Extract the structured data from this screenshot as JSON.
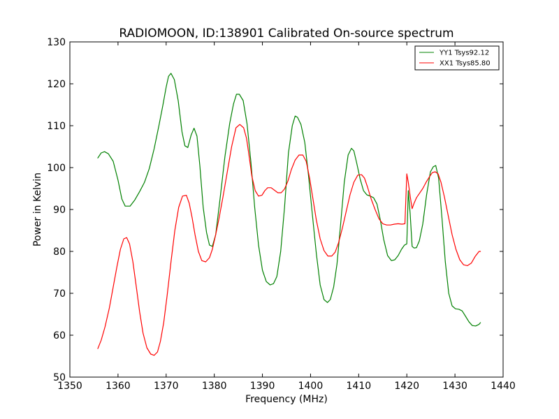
{
  "chart_data": {
    "type": "line",
    "title": "RADIOMOON, ID:138901 Calibrated On-source spectrum",
    "xlabel": "Frequency (MHz)",
    "ylabel": "Power in Kelvin",
    "xlim": [
      1350,
      1440
    ],
    "ylim": [
      50,
      130
    ],
    "xticks": [
      1350,
      1360,
      1370,
      1380,
      1390,
      1400,
      1410,
      1420,
      1430,
      1440
    ],
    "yticks": [
      50,
      60,
      70,
      80,
      90,
      100,
      110,
      120,
      130
    ],
    "grid": false,
    "legend_position": "top-right",
    "series": [
      {
        "name": "YY1 Tsys92.12",
        "color": "#008000",
        "x": [
          1355.8,
          1356.5,
          1357.2,
          1358.0,
          1359.0,
          1360.0,
          1360.8,
          1361.5,
          1362.5,
          1363.5,
          1364.5,
          1365.5,
          1366.5,
          1367.5,
          1368.5,
          1369.3,
          1370.0,
          1370.5,
          1371.0,
          1371.7,
          1372.5,
          1373.3,
          1373.9,
          1374.5,
          1375.2,
          1375.8,
          1376.4,
          1377.0,
          1377.7,
          1378.4,
          1379.0,
          1379.6,
          1380.3,
          1381.2,
          1382.2,
          1383.2,
          1384.0,
          1384.6,
          1385.2,
          1386.0,
          1386.8,
          1387.6,
          1388.4,
          1389.2,
          1390.0,
          1390.8,
          1391.6,
          1392.3,
          1393.0,
          1393.8,
          1394.6,
          1395.4,
          1396.2,
          1396.8,
          1397.3,
          1398.0,
          1398.8,
          1399.6,
          1400.4,
          1401.2,
          1402.0,
          1402.8,
          1403.5,
          1404.1,
          1404.8,
          1405.5,
          1406.2,
          1407.0,
          1407.8,
          1408.5,
          1409.0,
          1409.6,
          1410.3,
          1411.0,
          1411.7,
          1412.4,
          1413.1,
          1413.8,
          1414.5,
          1415.2,
          1416.0,
          1416.8,
          1417.5,
          1418.2,
          1418.9,
          1419.5,
          1420.0,
          1420.3,
          1420.7,
          1421.1,
          1421.5,
          1422.0,
          1422.6,
          1423.3,
          1424.1,
          1424.9,
          1425.5,
          1426.0,
          1426.6,
          1427.3,
          1428.0,
          1428.7,
          1429.4,
          1430.1,
          1430.8,
          1431.5,
          1432.2,
          1432.9,
          1433.6,
          1434.3,
          1435.0,
          1435.3
        ],
        "values": [
          102.3,
          103.5,
          103.8,
          103.3,
          101.5,
          97.0,
          92.5,
          90.8,
          90.8,
          92.3,
          94.3,
          96.5,
          99.8,
          104.5,
          110.0,
          114.8,
          119.2,
          121.8,
          122.5,
          121.0,
          116.0,
          108.5,
          105.2,
          104.8,
          107.8,
          109.4,
          107.5,
          100.5,
          90.5,
          84.5,
          81.5,
          81.2,
          84.0,
          92.5,
          102.5,
          110.5,
          115.2,
          117.5,
          117.5,
          116.0,
          110.5,
          101.5,
          90.5,
          81.5,
          75.5,
          72.8,
          72.0,
          72.3,
          74.0,
          80.0,
          90.5,
          103.5,
          110.0,
          112.3,
          112.0,
          110.3,
          106.0,
          97.8,
          88.5,
          79.5,
          72.0,
          68.5,
          67.8,
          68.5,
          71.5,
          77.0,
          86.0,
          96.5,
          103.0,
          104.6,
          104.0,
          101.0,
          97.3,
          94.5,
          93.5,
          93.2,
          92.8,
          91.3,
          87.5,
          82.8,
          79.0,
          77.8,
          78.0,
          79.0,
          80.5,
          81.5,
          81.8,
          94.5,
          89.0,
          81.2,
          80.8,
          80.9,
          82.5,
          86.5,
          93.5,
          99.0,
          100.2,
          100.5,
          97.5,
          88.0,
          77.5,
          70.0,
          67.0,
          66.3,
          66.2,
          65.8,
          64.5,
          63.2,
          62.3,
          62.2,
          62.6,
          63.0
        ]
      },
      {
        "name": "XX1 Tsys85.80",
        "color": "#ff0000",
        "x": [
          1355.8,
          1356.5,
          1357.3,
          1358.2,
          1359.0,
          1359.8,
          1360.5,
          1361.2,
          1361.8,
          1362.4,
          1363.1,
          1363.8,
          1364.5,
          1365.2,
          1366.0,
          1366.8,
          1367.5,
          1368.2,
          1368.8,
          1369.5,
          1370.2,
          1371.0,
          1371.8,
          1372.6,
          1373.4,
          1374.2,
          1374.8,
          1375.4,
          1376.0,
          1376.7,
          1377.4,
          1378.2,
          1379.0,
          1379.6,
          1380.3,
          1381.0,
          1381.8,
          1382.7,
          1383.6,
          1384.5,
          1385.3,
          1386.1,
          1386.7,
          1387.2,
          1387.8,
          1388.5,
          1389.2,
          1389.9,
          1390.5,
          1391.1,
          1391.8,
          1392.5,
          1393.2,
          1393.9,
          1394.6,
          1395.3,
          1396.0,
          1396.8,
          1397.6,
          1398.4,
          1399.1,
          1399.8,
          1400.5,
          1401.2,
          1402.0,
          1402.8,
          1403.6,
          1404.4,
          1405.1,
          1405.8,
          1406.6,
          1407.4,
          1408.2,
          1409.0,
          1409.8,
          1410.6,
          1411.2,
          1411.8,
          1412.6,
          1413.4,
          1414.2,
          1415.0,
          1415.8,
          1416.6,
          1417.4,
          1418.2,
          1419.0,
          1419.6,
          1420.0,
          1420.3,
          1420.7,
          1421.1,
          1421.5,
          1422.0,
          1422.6,
          1423.3,
          1424.0,
          1424.7,
          1425.3,
          1425.9,
          1426.5,
          1427.1,
          1427.8,
          1428.6,
          1429.4,
          1430.2,
          1431.0,
          1431.8,
          1432.6,
          1433.4,
          1434.2,
          1435.0,
          1435.3
        ],
        "values": [
          56.8,
          58.8,
          62.0,
          66.5,
          71.5,
          76.5,
          80.5,
          83.0,
          83.3,
          81.8,
          77.5,
          71.5,
          65.5,
          60.5,
          57.0,
          55.5,
          55.2,
          56.0,
          58.5,
          63.0,
          69.5,
          77.5,
          85.0,
          90.5,
          93.2,
          93.4,
          91.5,
          88.0,
          84.0,
          80.0,
          77.8,
          77.5,
          78.5,
          80.5,
          84.0,
          88.0,
          93.0,
          99.0,
          105.0,
          109.5,
          110.3,
          109.5,
          107.0,
          103.0,
          98.0,
          94.5,
          93.2,
          93.4,
          94.5,
          95.2,
          95.2,
          94.6,
          94.0,
          94.0,
          94.9,
          96.8,
          99.5,
          101.8,
          103.0,
          103.0,
          101.5,
          97.5,
          92.5,
          87.5,
          83.0,
          80.2,
          78.9,
          78.9,
          79.8,
          82.0,
          85.5,
          89.5,
          93.5,
          96.5,
          98.2,
          98.3,
          97.5,
          95.5,
          92.5,
          90.0,
          87.8,
          86.6,
          86.3,
          86.3,
          86.5,
          86.6,
          86.5,
          86.6,
          98.5,
          96.5,
          93.2,
          90.2,
          91.5,
          92.8,
          93.8,
          95.0,
          96.5,
          97.8,
          98.8,
          99.0,
          98.5,
          96.5,
          93.0,
          88.5,
          84.0,
          80.5,
          78.0,
          76.8,
          76.6,
          77.2,
          78.8,
          80.0,
          80.0
        ]
      }
    ]
  }
}
